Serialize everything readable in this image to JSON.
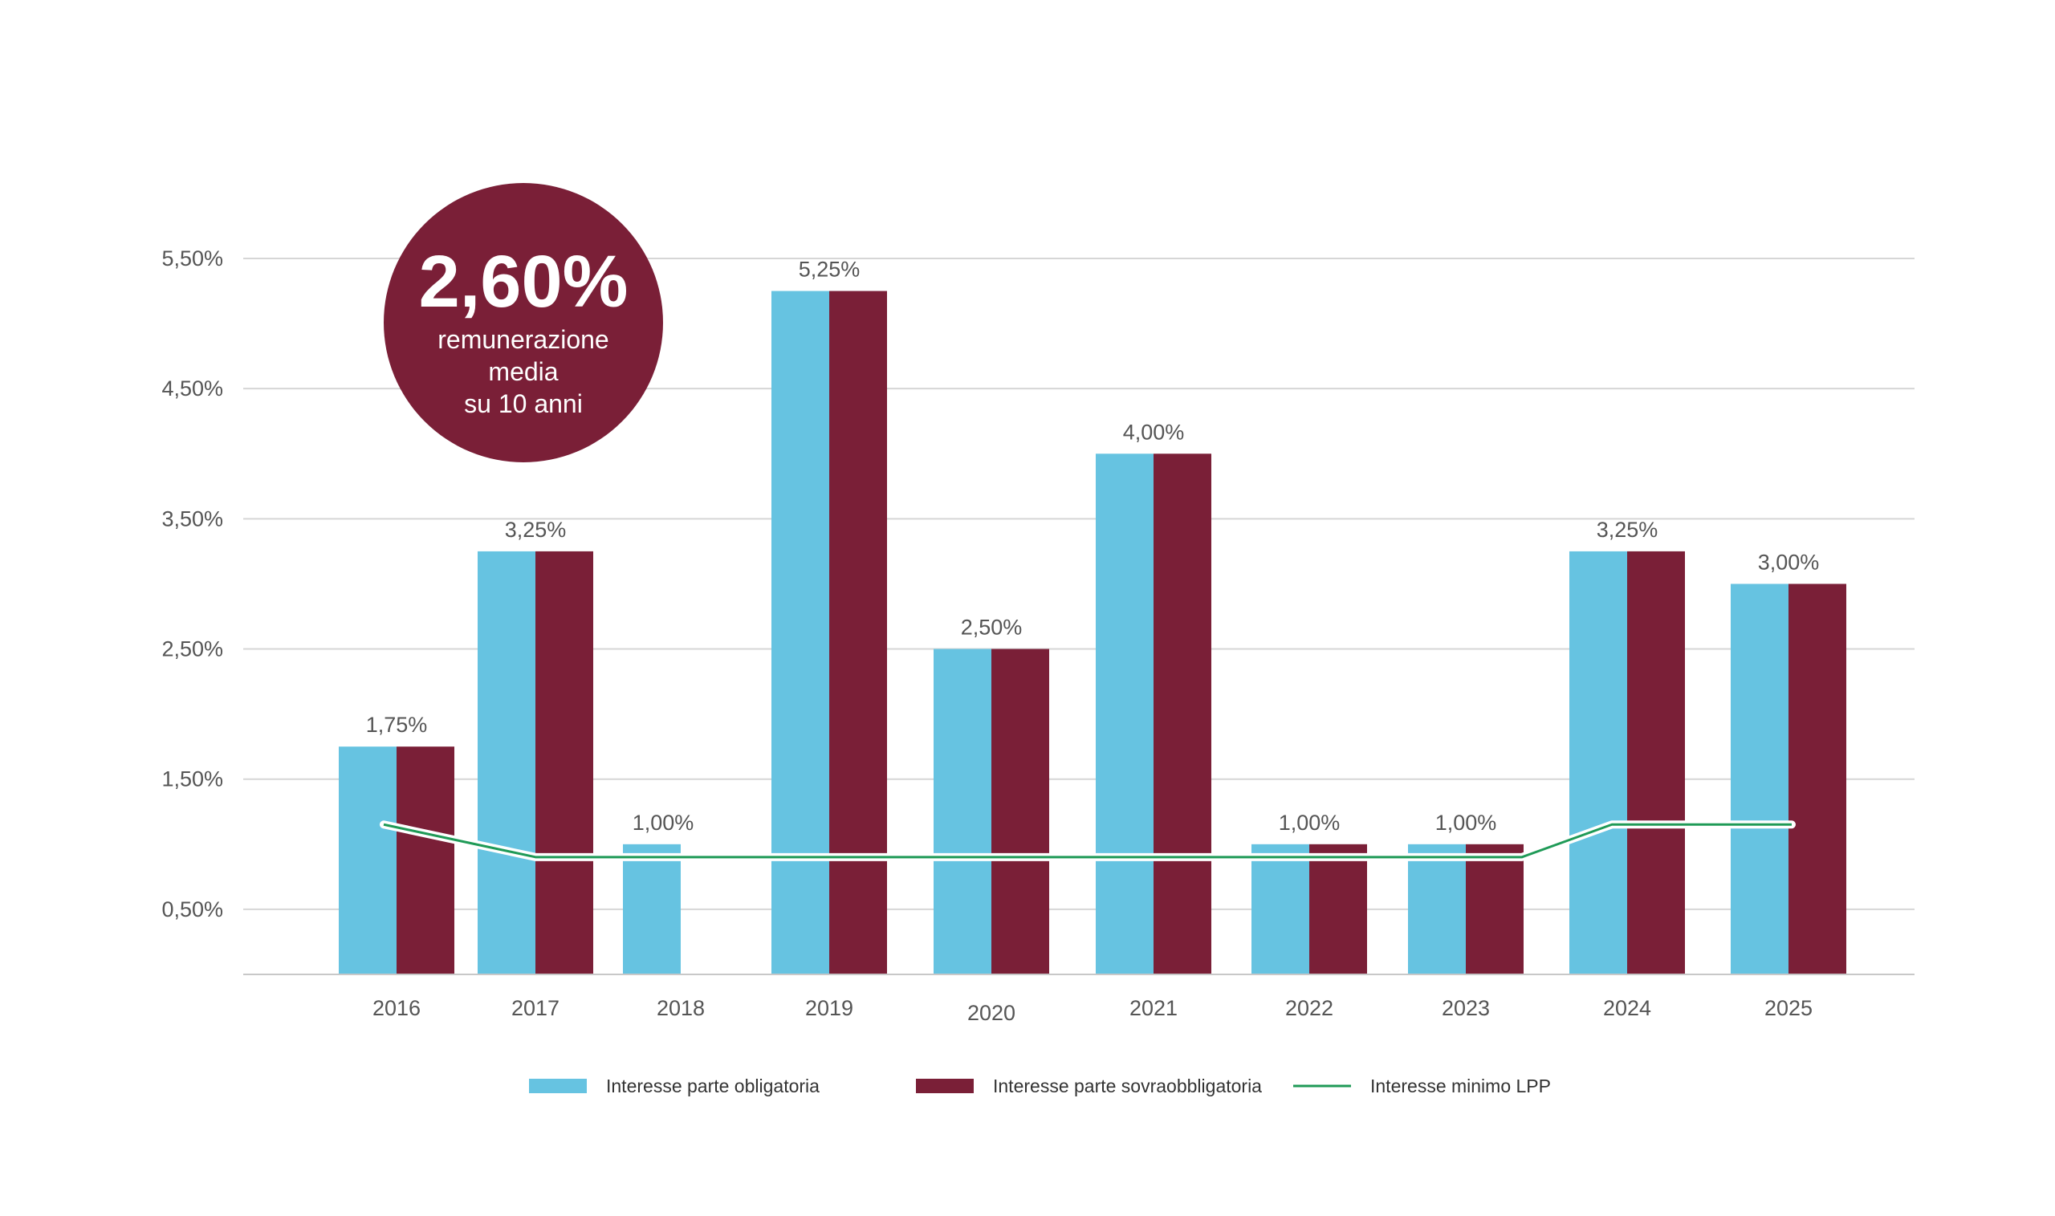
{
  "chart_data": {
    "type": "bar",
    "categories": [
      "2016",
      "2017",
      "2018",
      "2019",
      "2020",
      "2021",
      "2022",
      "2023",
      "2024",
      "2025"
    ],
    "series": [
      {
        "name": "Interesse parte obligatoria",
        "values": [
          1.75,
          3.25,
          1.0,
          5.25,
          2.5,
          4.0,
          1.0,
          1.0,
          3.25,
          3.0
        ],
        "color": "#66C3E1"
      },
      {
        "name": "Interesse parte sovraobbligatoria",
        "values": [
          1.75,
          3.25,
          null,
          5.25,
          2.5,
          4.0,
          1.0,
          1.0,
          3.25,
          3.0
        ],
        "color": "#7A1F37"
      }
    ],
    "line_series": {
      "name": "Interesse minimo LPP",
      "type": "line",
      "values": [
        1.25,
        1.0,
        1.0,
        1.0,
        1.0,
        1.0,
        1.0,
        1.0,
        1.25,
        1.25
      ],
      "color": "#1F9A57"
    },
    "data_labels": [
      "1,75%",
      "3,25%",
      "1,00%",
      "5,25%",
      "2,50%",
      "4,00%",
      "1,00%",
      "1,00%",
      "3,25%",
      "3,00%"
    ],
    "yticks": [
      "0,50%",
      "1,50%",
      "2,50%",
      "3,50%",
      "4,50%",
      "5,50%"
    ],
    "ytick_values": [
      0.5,
      1.5,
      2.5,
      3.5,
      4.5,
      5.5
    ],
    "ylim": [
      0,
      5.5
    ],
    "grid": true,
    "legend_position": "bottom",
    "title": "",
    "xlabel": "",
    "ylabel": ""
  },
  "badge": {
    "value": "2,60%",
    "line1": "remunerazione",
    "line2": "media",
    "line3": "su 10 anni",
    "color": "#7A1F37"
  }
}
